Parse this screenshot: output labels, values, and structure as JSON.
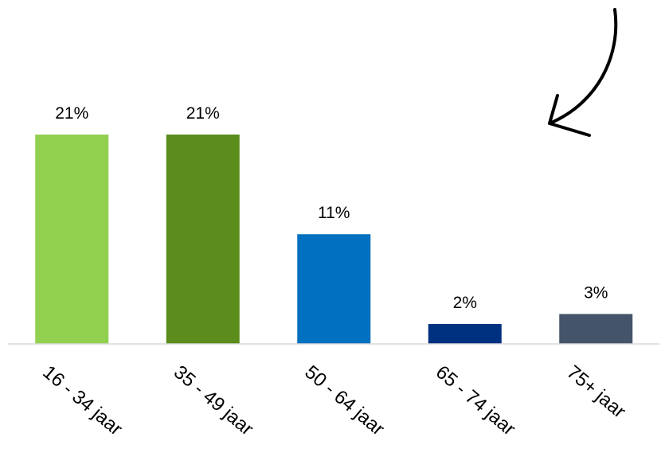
{
  "chart_data": {
    "type": "bar",
    "categories": [
      "16 - 34 jaar",
      "35 - 49 jaar",
      "50 - 64 jaar",
      "65 - 74 jaar",
      "75+ jaar"
    ],
    "values": [
      21,
      21,
      11,
      2,
      3
    ],
    "value_labels": [
      "21%",
      "21%",
      "11%",
      "2%",
      "3%"
    ],
    "bar_colors": [
      "#92d050",
      "#5b8c1c",
      "#0070c0",
      "#003080",
      "#44546a"
    ],
    "axis_line_color": "#d9d9d9",
    "arrow_color": "#000000",
    "ylim": [
      0,
      21
    ],
    "grid": false,
    "legend": "none"
  }
}
